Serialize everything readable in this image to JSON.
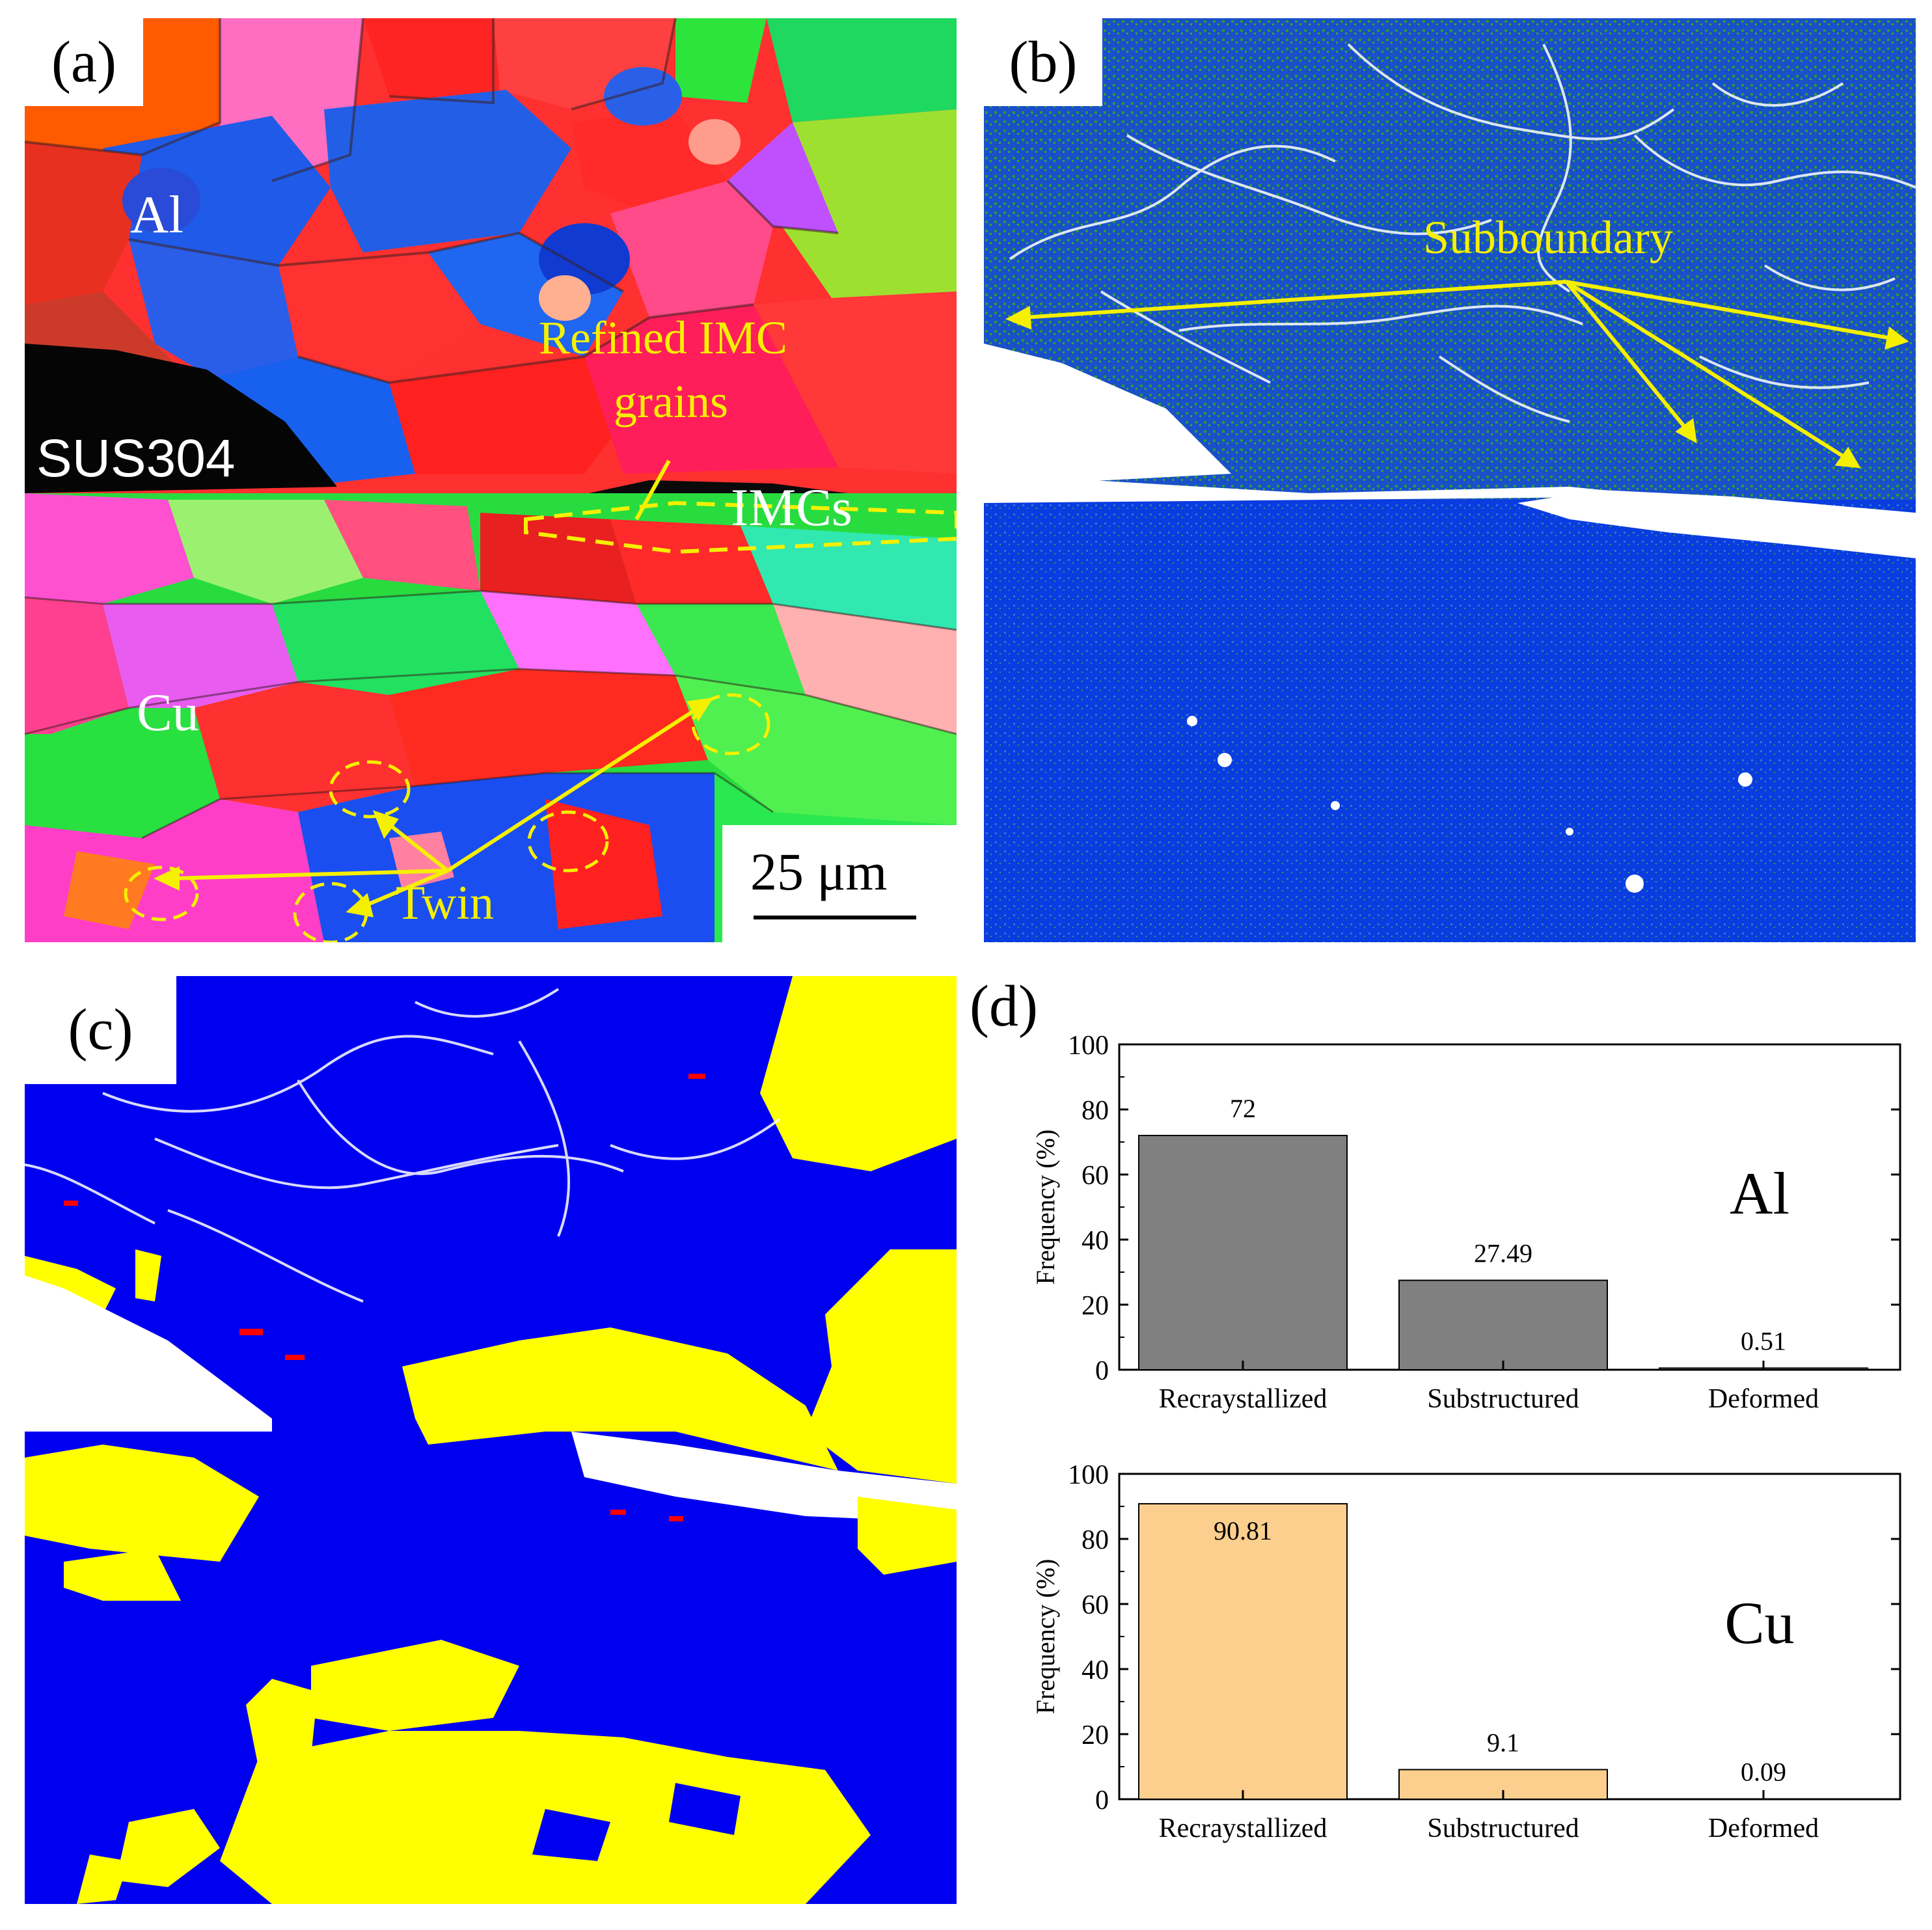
{
  "panel_a": {
    "label": "(a)",
    "annotations": {
      "al": "Al",
      "cu": "Cu",
      "sus": "SUS304",
      "refined_line1": "Refined IMC",
      "refined_line2": "grains",
      "imcs": "IMCs",
      "twin": "Twin",
      "scale": "25 μm"
    }
  },
  "panel_b": {
    "label": "(b)",
    "annotations": {
      "subboundary": "Subboundary"
    }
  },
  "panel_c": {
    "label": "(c)"
  },
  "panel_d": {
    "label": "(d)"
  },
  "colors": {
    "bar_al": "#808080",
    "bar_cu": "#fccf8e",
    "annotation_yellow": "#f5f000",
    "recrystallized_blue": "#0000f0",
    "substructured_yellow": "#ffff00",
    "deformed_red": "#ff0000"
  },
  "chart_data": [
    {
      "type": "bar",
      "categories": [
        "Recraystallized",
        "Substructured",
        "Deformed"
      ],
      "values": [
        72,
        27.49,
        0.51
      ],
      "value_labels": [
        "72",
        "27.49",
        "0.51"
      ],
      "annotation": "Al",
      "xlabel": "",
      "ylabel": "Frequency (%)",
      "ylim": [
        0,
        100
      ],
      "yticks": [
        0,
        20,
        40,
        60,
        80,
        100
      ],
      "grid": false
    },
    {
      "type": "bar",
      "categories": [
        "Recraystallized",
        "Substructured",
        "Deformed"
      ],
      "values": [
        90.81,
        9.1,
        0.09
      ],
      "value_labels": [
        "90.81",
        "9.1",
        "0.09"
      ],
      "annotation": "Cu",
      "xlabel": "",
      "ylabel": "Frequency (%)",
      "ylim": [
        0,
        100
      ],
      "yticks": [
        0,
        20,
        40,
        60,
        80,
        100
      ],
      "grid": false
    }
  ]
}
